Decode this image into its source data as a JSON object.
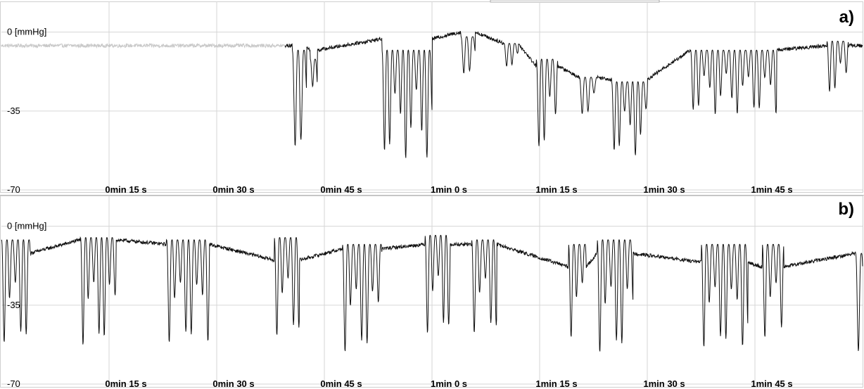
{
  "chart_data": [
    {
      "type": "line",
      "panel_label": "a)",
      "y_unit_label": "0 [mmHg]",
      "y_ticks": [
        {
          "value": 0,
          "label": "0 [mmHg]"
        },
        {
          "value": -35,
          "label": "-35"
        },
        {
          "value": -70,
          "label": "-70"
        }
      ],
      "ylim": [
        -70,
        8
      ],
      "xlim": [
        0,
        120
      ],
      "x_ticks": [
        {
          "value": 15,
          "label": "0min 15 s"
        },
        {
          "value": 30,
          "label": "0min 30 s"
        },
        {
          "value": 45,
          "label": "0min 45 s"
        },
        {
          "value": 60,
          "label": "1min 0 s"
        },
        {
          "value": 75,
          "label": "1min 15 s"
        },
        {
          "value": 90,
          "label": "1min 30 s"
        },
        {
          "value": 105,
          "label": "1min 45 s"
        }
      ],
      "grid": true,
      "series_colors": [
        "#c8c8c8",
        "#111111"
      ],
      "bursts": [
        {
          "t0": 40.5,
          "t1": 42.5,
          "f": 1.2,
          "base": -8,
          "amp": 42,
          "level": -6
        },
        {
          "t0": 43.0,
          "t1": 44.0,
          "f": 1.4,
          "base": -12,
          "amp": 12,
          "level": -8
        },
        {
          "t0": 53.0,
          "t1": 60.0,
          "f": 1.35,
          "base": -8,
          "amp": 44,
          "level": -3
        },
        {
          "t0": 64.0,
          "t1": 66.0,
          "f": 1.2,
          "base": -2,
          "amp": 16,
          "level": 0
        },
        {
          "t0": 70.0,
          "t1": 72.0,
          "f": 1.3,
          "base": -5,
          "amp": 10,
          "level": -5
        },
        {
          "t0": 74.5,
          "t1": 77.5,
          "f": 1.3,
          "base": -12,
          "amp": 38,
          "level": -15
        },
        {
          "t0": 80.5,
          "t1": 83.0,
          "f": 1.2,
          "base": -20,
          "amp": 16,
          "level": -20
        },
        {
          "t0": 85.0,
          "t1": 90.0,
          "f": 1.35,
          "base": -22,
          "amp": 30,
          "level": -21
        },
        {
          "t0": 96.0,
          "t1": 108.0,
          "f": 1.3,
          "base": -8,
          "amp": 26,
          "level": -8
        },
        {
          "t0": 115.0,
          "t1": 118.0,
          "f": 1.3,
          "base": -4,
          "amp": 22,
          "level": -6
        }
      ]
    },
    {
      "type": "line",
      "panel_label": "b)",
      "y_unit_label": "0 [mmHg]",
      "y_ticks": [
        {
          "value": 0,
          "label": "0 [mmHg]"
        },
        {
          "value": -35,
          "label": "-35"
        },
        {
          "value": -70,
          "label": "-70"
        }
      ],
      "ylim": [
        -70,
        8
      ],
      "xlim": [
        0,
        120
      ],
      "x_ticks": [
        {
          "value": 15,
          "label": "0min 15 s"
        },
        {
          "value": 30,
          "label": "0min 30 s"
        },
        {
          "value": 45,
          "label": "0min 45 s"
        },
        {
          "value": 60,
          "label": "1min 0 s"
        },
        {
          "value": 75,
          "label": "1min 15 s"
        },
        {
          "value": 90,
          "label": "1min 30 s"
        },
        {
          "value": 105,
          "label": "1min 45 s"
        }
      ],
      "grid": true,
      "series_colors": [
        "#111111"
      ],
      "bursts": [
        {
          "t0": 0.0,
          "t1": 4.0,
          "f": 1.3,
          "base": -6,
          "amp": 42,
          "level": -12
        },
        {
          "t0": 11.0,
          "t1": 16.0,
          "f": 1.35,
          "base": -5,
          "amp": 44,
          "level": -6
        },
        {
          "t0": 23.0,
          "t1": 29.0,
          "f": 1.3,
          "base": -6,
          "amp": 42,
          "level": -8
        },
        {
          "t0": 38.0,
          "t1": 41.5,
          "f": 1.3,
          "base": -5,
          "amp": 40,
          "level": -15
        },
        {
          "t0": 47.5,
          "t1": 53.0,
          "f": 1.3,
          "base": -8,
          "amp": 44,
          "level": -10
        },
        {
          "t0": 59.0,
          "t1": 62.5,
          "f": 1.35,
          "base": -4,
          "amp": 40,
          "level": -8
        },
        {
          "t0": 65.5,
          "t1": 69.0,
          "f": 1.3,
          "base": -6,
          "amp": 38,
          "level": -8
        },
        {
          "t0": 79.0,
          "t1": 81.5,
          "f": 1.3,
          "base": -8,
          "amp": 38,
          "level": -18
        },
        {
          "t0": 83.0,
          "t1": 88.0,
          "f": 1.3,
          "base": -6,
          "amp": 46,
          "level": -12
        },
        {
          "t0": 97.5,
          "t1": 104.0,
          "f": 1.3,
          "base": -8,
          "amp": 42,
          "level": -16
        },
        {
          "t0": 106.0,
          "t1": 109.0,
          "f": 1.3,
          "base": -8,
          "amp": 38,
          "level": -18
        },
        {
          "t0": 119.0,
          "t1": 120.0,
          "f": 1.2,
          "base": -12,
          "amp": 40,
          "level": -12
        }
      ]
    }
  ]
}
